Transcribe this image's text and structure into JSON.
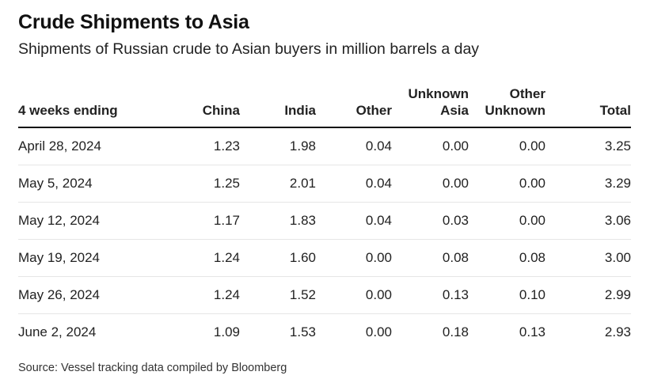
{
  "title": "Crude Shipments to Asia",
  "subtitle": "Shipments of Russian crude to Asian buyers in million barrels a day",
  "source": "Source: Vessel tracking data compiled by Bloomberg",
  "chart_data": {
    "type": "table",
    "columns": [
      {
        "key": "week",
        "label": [
          "4 weeks ending"
        ]
      },
      {
        "key": "china",
        "label": [
          "China"
        ]
      },
      {
        "key": "india",
        "label": [
          "India"
        ]
      },
      {
        "key": "other",
        "label": [
          "Other"
        ]
      },
      {
        "key": "unknown_asia",
        "label": [
          "Unknown",
          "Asia"
        ]
      },
      {
        "key": "other_unknown",
        "label": [
          "Other",
          "Unknown"
        ]
      },
      {
        "key": "total",
        "label": [
          "Total"
        ]
      }
    ],
    "rows": [
      [
        "April 28, 2024",
        "1.23",
        "1.98",
        "0.04",
        "0.00",
        "0.00",
        "3.25"
      ],
      [
        "May 5, 2024",
        "1.25",
        "2.01",
        "0.04",
        "0.00",
        "0.00",
        "3.29"
      ],
      [
        "May 12, 2024",
        "1.17",
        "1.83",
        "0.04",
        "0.03",
        "0.00",
        "3.06"
      ],
      [
        "May 19, 2024",
        "1.24",
        "1.60",
        "0.00",
        "0.08",
        "0.08",
        "3.00"
      ],
      [
        "May 26, 2024",
        "1.24",
        "1.52",
        "0.00",
        "0.13",
        "0.10",
        "2.99"
      ],
      [
        "June 2, 2024",
        "1.09",
        "1.53",
        "0.00",
        "0.18",
        "0.13",
        "2.93"
      ]
    ]
  }
}
